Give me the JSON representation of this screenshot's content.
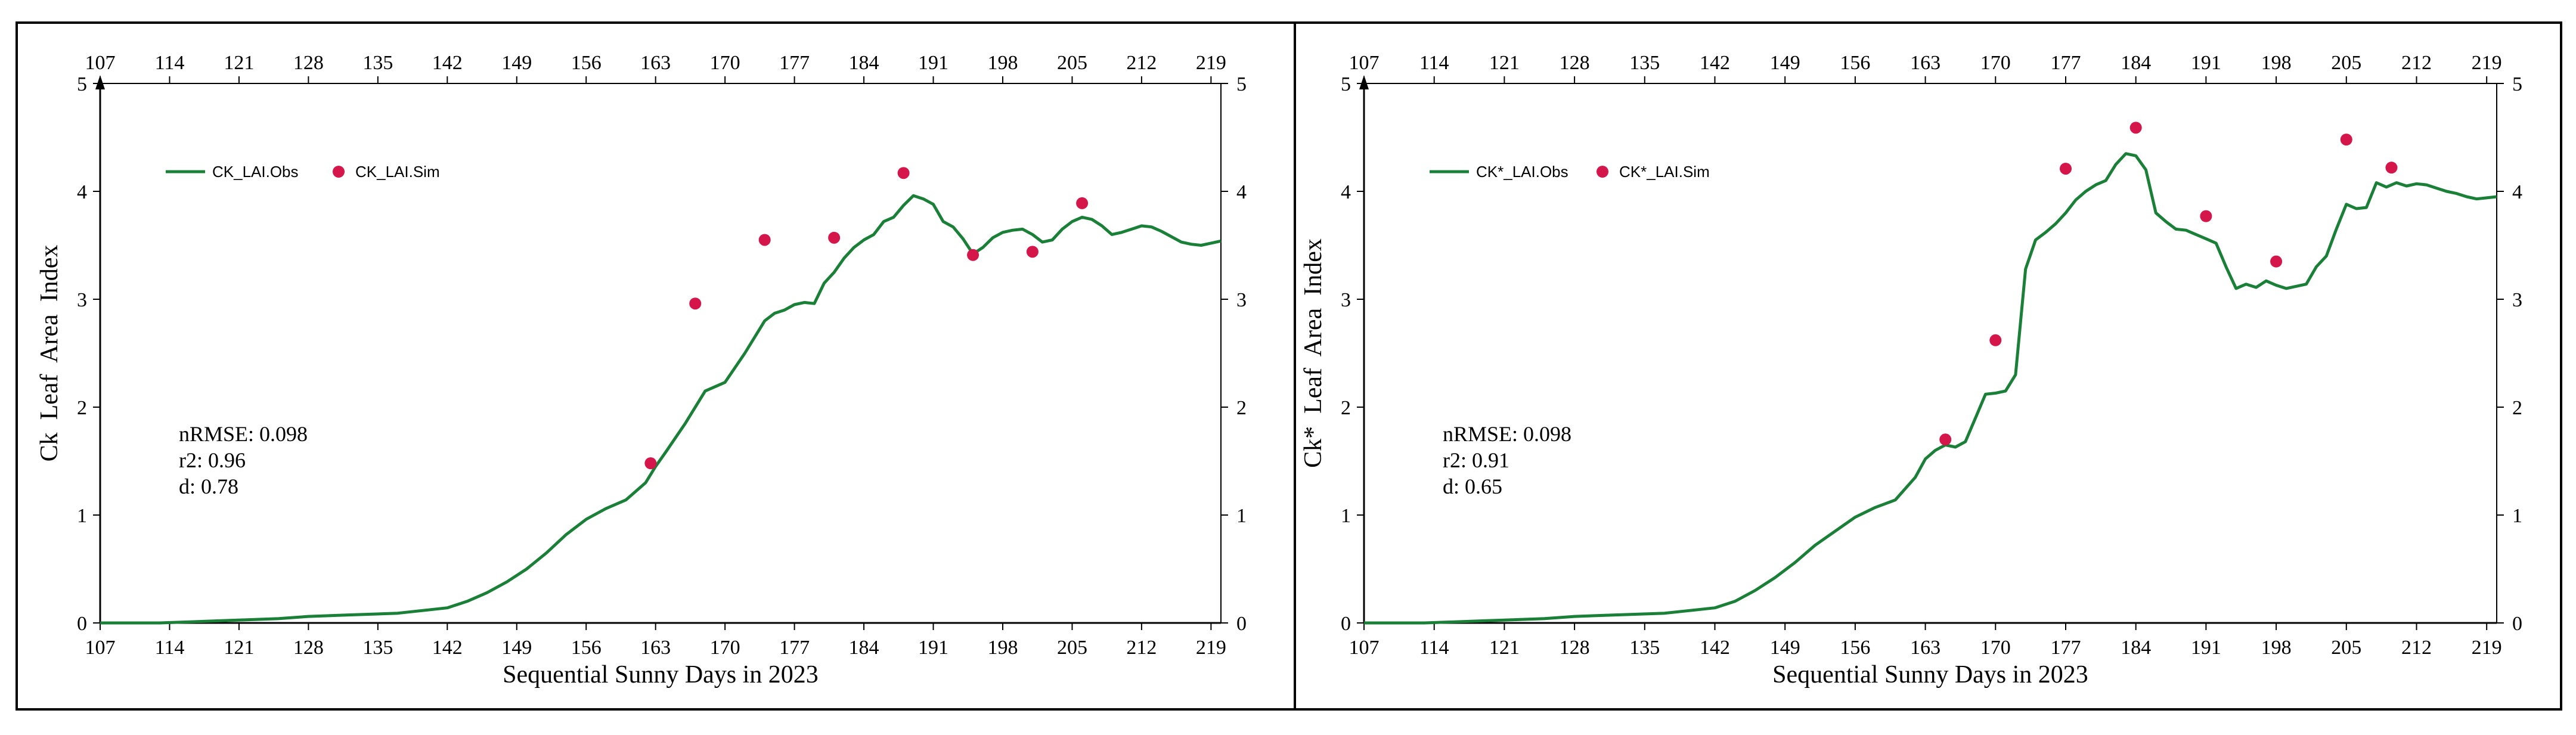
{
  "colors": {
    "obs_line": "#1a7f37",
    "sim_marker": "#d4164a",
    "axis": "#000000"
  },
  "chart_data": [
    {
      "type": "line",
      "xlabel": "Sequential Sunny Days in 2023",
      "ylabel": "Ck  Leaf  Area  Index",
      "xlim": [
        107,
        220
      ],
      "ylim": [
        0,
        5
      ],
      "xticks": [
        "107",
        "114",
        "121",
        "128",
        "135",
        "142",
        "149",
        "156",
        "163",
        "170",
        "177",
        "184",
        "191",
        "198",
        "205",
        "212",
        "219"
      ],
      "yticks": [
        "0",
        "1",
        "2",
        "3",
        "4",
        "5"
      ],
      "legend_position": "top-left",
      "series": [
        {
          "name": "CK_LAI.Obs",
          "style": "line",
          "x": [
            107,
            110,
            113,
            116,
            119,
            122,
            125,
            128,
            131,
            134,
            137,
            140,
            142,
            144,
            146,
            148,
            150,
            152,
            154,
            156,
            158,
            160,
            162,
            163,
            164,
            166,
            168,
            170,
            172,
            174,
            175,
            176,
            177,
            178,
            179,
            180,
            181,
            182,
            183,
            184,
            185,
            186,
            187,
            188,
            189,
            190,
            191,
            192,
            193,
            194,
            195,
            196,
            197,
            198,
            199,
            200,
            201,
            202,
            203,
            204,
            205,
            206,
            207,
            208,
            209,
            210,
            211,
            212,
            213,
            214,
            215,
            216,
            217,
            218,
            219,
            220
          ],
          "y": [
            0,
            0,
            0,
            0.01,
            0.02,
            0.03,
            0.04,
            0.06,
            0.07,
            0.08,
            0.09,
            0.12,
            0.14,
            0.2,
            0.28,
            0.38,
            0.5,
            0.65,
            0.82,
            0.96,
            1.06,
            1.14,
            1.3,
            1.45,
            1.58,
            1.85,
            2.15,
            2.23,
            2.5,
            2.8,
            2.87,
            2.9,
            2.95,
            2.97,
            2.96,
            3.15,
            3.25,
            3.38,
            3.48,
            3.55,
            3.6,
            3.72,
            3.76,
            3.87,
            3.96,
            3.93,
            3.88,
            3.72,
            3.67,
            3.56,
            3.42,
            3.48,
            3.57,
            3.62,
            3.64,
            3.65,
            3.6,
            3.53,
            3.55,
            3.65,
            3.72,
            3.76,
            3.74,
            3.68,
            3.6,
            3.62,
            3.65,
            3.68,
            3.67,
            3.63,
            3.58,
            3.53,
            3.51,
            3.5,
            3.52,
            3.54
          ]
        },
        {
          "name": "CK_LAI.Sim",
          "style": "marker",
          "x": [
            162.5,
            167,
            174,
            181,
            188,
            195,
            201,
            206
          ],
          "y": [
            1.48,
            2.96,
            3.55,
            3.57,
            4.17,
            3.41,
            3.44,
            3.89
          ]
        }
      ],
      "annotations": [
        "nRMSE: 0.098",
        "r2: 0.96",
        "d: 0.78"
      ]
    },
    {
      "type": "line",
      "xlabel": "Sequential Sunny Days in 2023",
      "ylabel": "Ck*  Leaf  Area  Index",
      "xlim": [
        107,
        220
      ],
      "ylim": [
        0,
        5
      ],
      "xticks": [
        "107",
        "114",
        "121",
        "128",
        "135",
        "142",
        "149",
        "156",
        "163",
        "170",
        "177",
        "184",
        "191",
        "198",
        "205",
        "212",
        "219"
      ],
      "yticks": [
        "0",
        "1",
        "2",
        "3",
        "4",
        "5"
      ],
      "legend_position": "top-left",
      "series": [
        {
          "name": "CK*_LAI.Obs",
          "style": "line",
          "x": [
            107,
            110,
            113,
            116,
            119,
            122,
            125,
            128,
            131,
            134,
            137,
            140,
            142,
            144,
            146,
            148,
            150,
            152,
            154,
            156,
            158,
            160,
            162,
            163,
            164,
            165,
            166,
            167,
            168,
            169,
            170,
            171,
            172,
            173,
            174,
            175,
            176,
            177,
            178,
            179,
            180,
            181,
            182,
            183,
            184,
            185,
            186,
            187,
            188,
            189,
            190,
            191,
            192,
            193,
            194,
            195,
            196,
            197,
            198,
            199,
            200,
            201,
            202,
            203,
            204,
            205,
            206,
            207,
            208,
            209,
            210,
            211,
            212,
            213,
            214,
            215,
            216,
            217,
            218,
            219,
            220
          ],
          "y": [
            0,
            0,
            0,
            0.01,
            0.02,
            0.03,
            0.04,
            0.06,
            0.07,
            0.08,
            0.09,
            0.12,
            0.14,
            0.2,
            0.3,
            0.42,
            0.56,
            0.72,
            0.85,
            0.98,
            1.07,
            1.14,
            1.35,
            1.52,
            1.6,
            1.65,
            1.63,
            1.68,
            1.9,
            2.12,
            2.13,
            2.15,
            2.3,
            3.28,
            3.55,
            3.62,
            3.7,
            3.8,
            3.92,
            4,
            4.06,
            4.1,
            4.25,
            4.35,
            4.33,
            4.2,
            3.8,
            3.72,
            3.65,
            3.64,
            3.6,
            3.56,
            3.52,
            3.3,
            3.1,
            3.14,
            3.11,
            3.17,
            3.13,
            3.1,
            3.12,
            3.14,
            3.3,
            3.4,
            3.65,
            3.88,
            3.84,
            3.85,
            4.08,
            4.04,
            4.08,
            4.05,
            4.07,
            4.06,
            4.03,
            4,
            3.98,
            3.95,
            3.93,
            3.94,
            3.95
          ]
        },
        {
          "name": "CK*_LAI.Sim",
          "style": "marker",
          "x": [
            165,
            170,
            177,
            184,
            191,
            198,
            205,
            209.5
          ],
          "y": [
            1.7,
            2.62,
            4.21,
            4.59,
            3.77,
            3.35,
            4.48,
            4.22
          ]
        }
      ],
      "annotations": [
        "nRMSE: 0.098",
        "r2: 0.91",
        "d: 0.65"
      ]
    }
  ]
}
